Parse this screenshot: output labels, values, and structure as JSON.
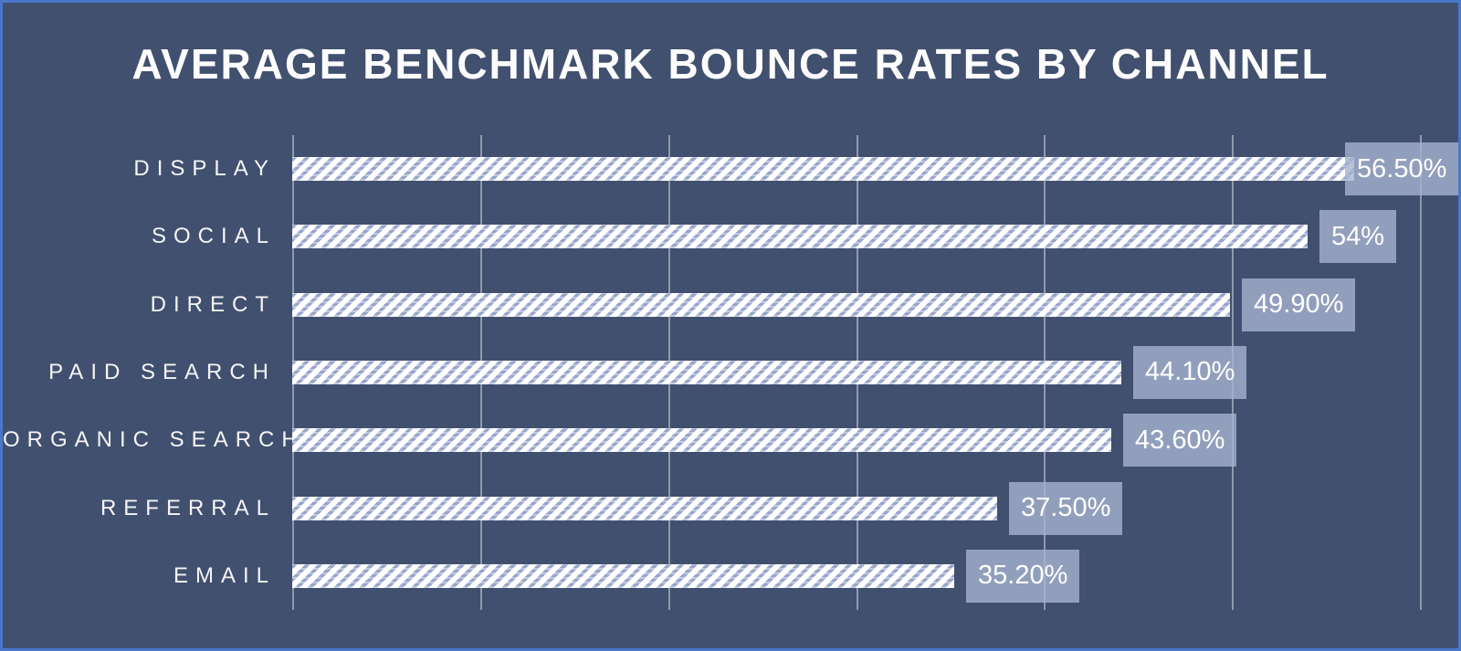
{
  "chart_data": {
    "type": "bar",
    "orientation": "horizontal",
    "title": "AVERAGE BENCHMARK BOUNCE RATES BY CHANNEL",
    "categories": [
      "DISPLAY",
      "SOCIAL",
      "DIRECT",
      "PAID SEARCH",
      "ORGANIC SEARCH",
      "REFERRAL",
      "EMAIL"
    ],
    "values": [
      56.5,
      54,
      49.9,
      44.1,
      43.6,
      37.5,
      35.2
    ],
    "value_labels": [
      "56.50%",
      "54%",
      "49.90%",
      "44.10%",
      "43.60%",
      "37.50%",
      "35.20%"
    ],
    "xlabel": "",
    "ylabel": "",
    "xlim": [
      0,
      60
    ],
    "gridline_step": 10,
    "grid": true,
    "legend": false,
    "bar_fill_style": "white-diagonal-hatch",
    "colors": {
      "background": "#41506F",
      "frame_border": "#4A77C9",
      "bar_stripe": "#97A5CB",
      "bar_base": "#FFFFFF",
      "value_box_fill": "#8E9CBB",
      "gridline": "#8B95AB",
      "title_text": "#FDFDFD",
      "label_text": "#F5F5F5"
    }
  }
}
